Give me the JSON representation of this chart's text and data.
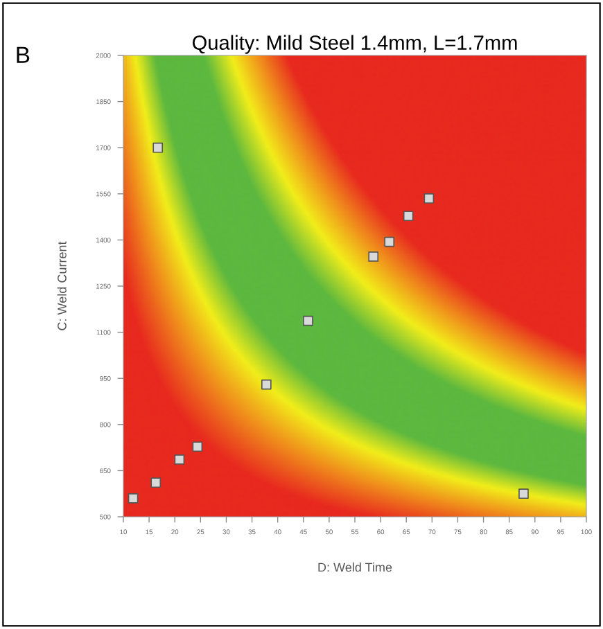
{
  "chart_data": {
    "type": "scatter",
    "title": "Quality: Mild Steel 1.4mm, L=1.7mm",
    "xlabel": "D: Weld Time",
    "ylabel": "C: Weld Current",
    "annotations": [
      "B"
    ],
    "x": [
      16.7,
      69.4,
      65.4,
      61.7,
      58.6,
      45.9,
      37.8,
      24.4,
      20.9,
      16.3,
      11.9,
      87.8
    ],
    "series": [
      {
        "color": "#d9d9d9",
        "values": [
          1700,
          1535,
          1478,
          1394,
          1346,
          1137,
          930,
          728,
          686,
          611,
          560,
          575
        ]
      }
    ],
    "marker": "square",
    "xlim": [
      10,
      100
    ],
    "xticks": [
      10,
      15,
      20,
      25,
      30,
      35,
      40,
      45,
      50,
      55,
      60,
      65,
      70,
      75,
      80,
      85,
      90,
      95,
      100
    ],
    "ylim": [
      500,
      2000
    ],
    "yticks": [
      500,
      650,
      800,
      950,
      1100,
      1250,
      1400,
      1550,
      1700,
      1850,
      2000
    ],
    "grid": false,
    "legend": false
  }
}
